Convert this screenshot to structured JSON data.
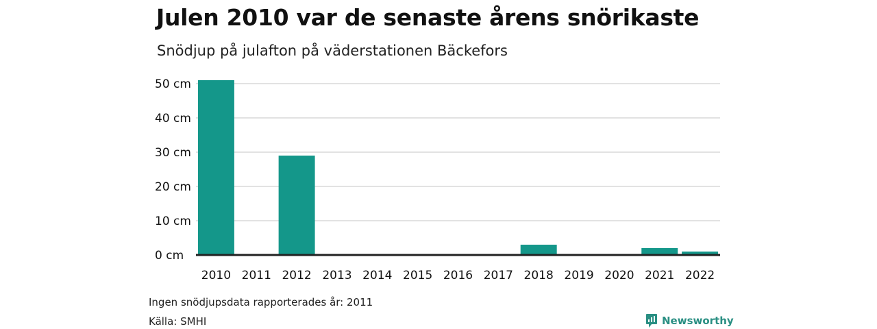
{
  "colors": {
    "bar": "#14978a",
    "grid": "#d9d9d9",
    "axis": "#222222",
    "brand": "#2a8f83"
  },
  "chart_data": {
    "type": "bar",
    "title": "Julen 2010 var de senaste årens snörikaste",
    "subtitle": "Snödjup på julafton på väderstationen Bäckefors",
    "categories": [
      "2010",
      "2011",
      "2012",
      "2013",
      "2014",
      "2015",
      "2016",
      "2017",
      "2018",
      "2019",
      "2020",
      "2021",
      "2022"
    ],
    "values": [
      51,
      null,
      29,
      0,
      0,
      0,
      0,
      0,
      3,
      0,
      0,
      2,
      1
    ],
    "ylim": [
      0,
      50
    ],
    "yticks": [
      0,
      10,
      20,
      30,
      40,
      50
    ],
    "ytick_labels": [
      "0 cm",
      "10 cm",
      "20 cm",
      "30 cm",
      "40 cm",
      "50 cm"
    ],
    "xlabel": "",
    "ylabel": "",
    "grid": true
  },
  "footer": {
    "note": "Ingen snödjupsdata rapporterades år: 2011",
    "source": "Källa: SMHI",
    "brand": "Newsworthy"
  }
}
